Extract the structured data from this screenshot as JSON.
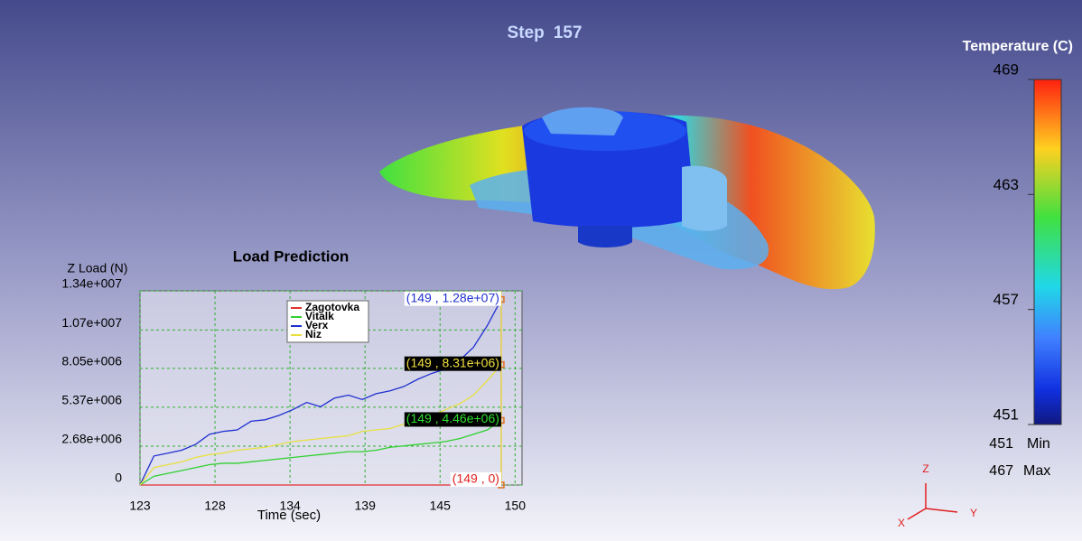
{
  "viewport": {
    "step_label": "Step",
    "step": 157
  },
  "temperature_legend": {
    "title": "Temperature (C)",
    "range": [
      451,
      469
    ],
    "ticks": [
      451,
      457,
      463,
      469
    ],
    "min_value": 451,
    "min_label": "Min",
    "max_value": 467,
    "max_label": "Max"
  },
  "axis_triad": {
    "z": "Z",
    "y": "Y",
    "x": "X"
  },
  "chart_data": {
    "type": "line",
    "title": "Load Prediction",
    "x_label": "Time (sec)",
    "y_label": "Z Load (N)",
    "x": [
      123,
      124,
      125,
      126,
      127,
      128,
      129,
      130,
      131,
      132,
      133,
      134,
      135,
      136,
      137,
      138,
      139,
      140,
      141,
      142,
      143,
      144,
      145,
      146,
      147,
      148,
      149
    ],
    "series": [
      {
        "name": "Zagotovka",
        "color": "#e03030",
        "values": [
          0,
          0,
          0,
          0,
          0,
          0,
          0,
          0,
          0,
          0,
          0,
          0,
          0,
          0,
          0,
          0,
          0,
          0,
          0,
          0,
          0,
          0,
          0,
          0,
          0,
          0,
          0
        ]
      },
      {
        "name": "Vitalk",
        "color": "#30d030",
        "values": [
          0,
          600000,
          800000,
          1000000,
          1200000,
          1400000,
          1500000,
          1500000,
          1600000,
          1700000,
          1800000,
          1900000,
          2000000,
          2100000,
          2200000,
          2300000,
          2300000,
          2400000,
          2600000,
          2700000,
          2800000,
          2900000,
          3000000,
          3200000,
          3500000,
          3800000,
          4460000
        ]
      },
      {
        "name": "Verx",
        "color": "#2030d0",
        "values": [
          0,
          2000000,
          2200000,
          2400000,
          2800000,
          3500000,
          3700000,
          3800000,
          4400000,
          4500000,
          4800000,
          5200000,
          5700000,
          5400000,
          6000000,
          6200000,
          5900000,
          6300000,
          6500000,
          6800000,
          7300000,
          7700000,
          8000000,
          8600000,
          9500000,
          11000000,
          12800000
        ]
      },
      {
        "name": "Niz",
        "color": "#e8e040",
        "values": [
          0,
          1200000,
          1400000,
          1600000,
          1900000,
          2100000,
          2200000,
          2400000,
          2500000,
          2600000,
          2800000,
          3000000,
          3100000,
          3200000,
          3300000,
          3400000,
          3700000,
          3800000,
          3900000,
          4200000,
          4500000,
          4800000,
          5200000,
          5600000,
          6200000,
          7200000,
          8310000
        ]
      }
    ],
    "xlim": [
      123,
      150.5
    ],
    "xticks": [
      123,
      {
        "value": 128.4,
        "label": "128"
      },
      {
        "value": 133.8,
        "label": "134"
      },
      {
        "value": 139.2,
        "label": "139"
      },
      {
        "value": 144.6,
        "label": "145"
      },
      150
    ],
    "ylim": [
      0,
      13400000
    ],
    "yticks": [
      0,
      {
        "value": 2680000,
        "label": "2.68e+006"
      },
      {
        "value": 5370000,
        "label": "5.37e+006"
      },
      {
        "value": 8050000,
        "label": "8.05e+006"
      },
      {
        "value": 10700000,
        "label": "1.07e+007"
      },
      {
        "value": 13400000,
        "label": "1.34e+007"
      }
    ],
    "grid": true,
    "annotations": [
      {
        "x": 149,
        "y": 12800000,
        "label": "(149 , 1.28e+07)",
        "color": "#2030d0",
        "background": "#ffffff"
      },
      {
        "x": 149,
        "y": 8310000,
        "label": "(149 , 8.31e+06)",
        "color": "#f0e040",
        "background": "#000000"
      },
      {
        "x": 149,
        "y": 4460000,
        "label": "(149 , 4.46e+06)",
        "color": "#30e030",
        "background": "#000000"
      },
      {
        "x": 149,
        "y": 0,
        "label": "(149 , 0)",
        "color": "#e02020",
        "background": "#ffffff"
      }
    ]
  }
}
